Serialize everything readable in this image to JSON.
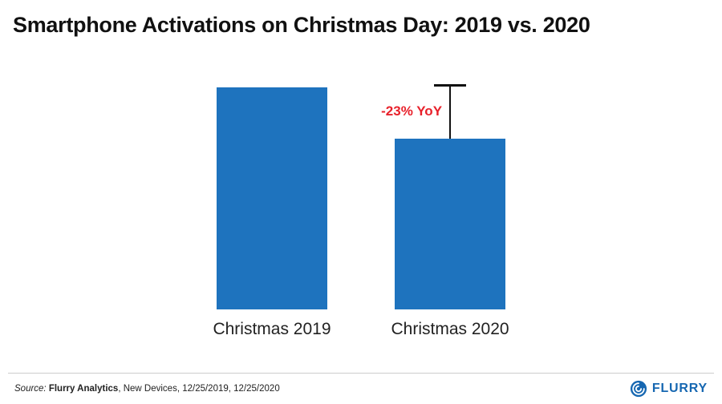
{
  "title": "Smartphone Activations on Christmas Day: 2019 vs. 2020",
  "chart_data": {
    "type": "bar",
    "categories": [
      "Christmas 2019",
      "Christmas 2020"
    ],
    "values": [
      100,
      77
    ],
    "title": "Smartphone Activations on Christmas Day: 2019 vs. 2020",
    "xlabel": "",
    "ylabel": "",
    "ylim": [
      0,
      100
    ],
    "grid": false,
    "legend": "none",
    "annotation": "-23% YoY",
    "annotation_target": "Christmas 2020"
  },
  "colors": {
    "bar": "#1e73be",
    "annotation_red": "#e8212b",
    "brand_blue": "#1667b1",
    "marker_black": "#111111"
  },
  "footer": {
    "source_prefix": "Source: ",
    "source_bold": "Flurry Analytics",
    "source_rest": ", New Devices, 12/25/2019, 12/25/2020",
    "logo_text": "FLURRY"
  }
}
